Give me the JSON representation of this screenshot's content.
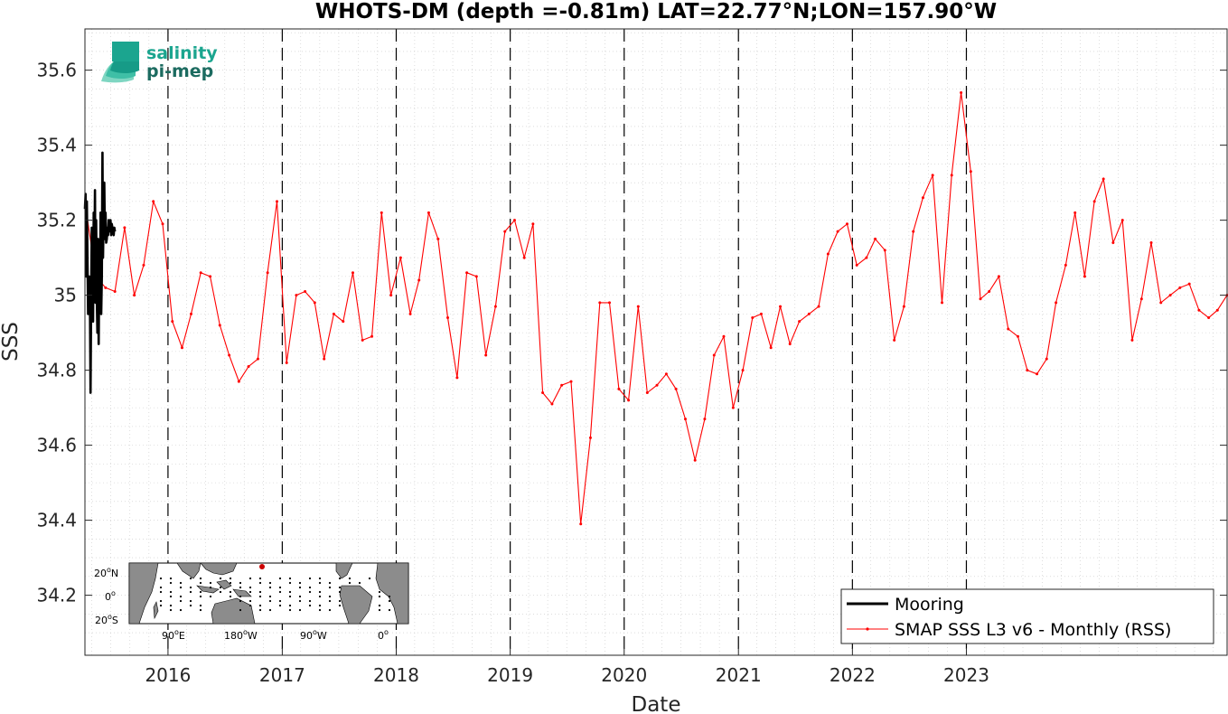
{
  "chart_data": {
    "type": "line",
    "title": "WHOTS-DM (depth =-0.81m) LAT=22.77°N;LON=157.90°W",
    "xlabel": "Date",
    "ylabel": "SSS",
    "xlim": [
      "2015-04-10",
      "2025-04-15"
    ],
    "ylim": [
      34.04,
      35.71
    ],
    "yticks": [
      34.2,
      34.4,
      34.6,
      34.8,
      35,
      35.2,
      35.4,
      35.6
    ],
    "ytick_labels": [
      "34.2",
      "34.4",
      "34.6",
      "34.8",
      "35",
      "35.2",
      "35.4",
      "35.6"
    ],
    "xtick_labels": [
      "2016",
      "2017",
      "2018",
      "2019",
      "2020",
      "2021",
      "2022",
      "2023"
    ],
    "year_lines": [
      "2016-01-01",
      "2017-01-01",
      "2018-01-01",
      "2019-01-01",
      "2020-01-01",
      "2021-01-01",
      "2022-01-01",
      "2023-01-01"
    ],
    "grid": true,
    "legend_position": "bottom-right",
    "series": [
      {
        "name": "Mooring",
        "color": "#000000",
        "x": [
          "2015-04-10",
          "2015-04-12",
          "2015-04-14",
          "2015-04-16",
          "2015-04-18",
          "2015-04-20",
          "2015-04-22",
          "2015-04-24",
          "2015-04-26",
          "2015-04-28",
          "2015-04-30",
          "2015-05-02",
          "2015-05-04",
          "2015-05-06",
          "2015-05-08",
          "2015-05-10",
          "2015-05-12",
          "2015-05-14",
          "2015-05-16",
          "2015-05-18",
          "2015-05-20",
          "2015-05-22",
          "2015-05-24",
          "2015-05-26",
          "2015-05-28",
          "2015-05-30",
          "2015-06-01",
          "2015-06-03",
          "2015-06-05",
          "2015-06-07",
          "2015-06-09",
          "2015-06-11",
          "2015-06-13",
          "2015-06-15",
          "2015-06-17",
          "2015-06-19",
          "2015-06-21",
          "2015-06-23",
          "2015-06-25",
          "2015-06-27",
          "2015-06-29",
          "2015-07-01",
          "2015-07-03",
          "2015-07-05",
          "2015-07-07",
          "2015-07-09",
          "2015-07-11",
          "2015-07-13",
          "2015-07-15"
        ],
        "y": [
          35.23,
          35.27,
          35.05,
          35.25,
          35.1,
          34.95,
          34.98,
          35.05,
          35.0,
          34.74,
          35.0,
          35.18,
          35.03,
          34.93,
          35.22,
          35.05,
          35.28,
          34.98,
          35.2,
          35.0,
          34.9,
          35.15,
          34.87,
          35.1,
          34.98,
          35.22,
          34.95,
          35.05,
          35.38,
          35.1,
          35.22,
          35.3,
          35.15,
          35.22,
          35.14,
          35.15,
          35.18,
          35.16,
          35.2,
          35.18,
          35.17,
          35.2,
          35.16,
          35.19,
          35.18,
          35.17,
          35.16,
          35.18,
          35.17
        ]
      },
      {
        "name": "SMAP SSS L3 v6 - Monthly (RSS)",
        "color": "#ff0000",
        "x": [
          "2015-04-15",
          "2015-05-15",
          "2015-06-15",
          "2015-07-15",
          "2015-08-15",
          "2015-09-15",
          "2015-10-15",
          "2015-11-15",
          "2015-12-15",
          "2016-01-15",
          "2016-02-15",
          "2016-03-15",
          "2016-04-15",
          "2016-05-15",
          "2016-06-15",
          "2016-07-15",
          "2016-08-15",
          "2016-09-15",
          "2016-10-15",
          "2016-11-15",
          "2016-12-15",
          "2017-01-15",
          "2017-02-15",
          "2017-03-15",
          "2017-04-15",
          "2017-05-15",
          "2017-06-15",
          "2017-07-15",
          "2017-08-15",
          "2017-09-15",
          "2017-10-15",
          "2017-11-15",
          "2017-12-15",
          "2018-01-15",
          "2018-02-15",
          "2018-03-15",
          "2018-04-15",
          "2018-05-15",
          "2018-06-15",
          "2018-07-15",
          "2018-08-15",
          "2018-09-15",
          "2018-10-15",
          "2018-11-15",
          "2018-12-15",
          "2019-01-15",
          "2019-02-15",
          "2019-03-15",
          "2019-04-15",
          "2019-05-15",
          "2019-06-15",
          "2019-07-15",
          "2019-08-15",
          "2019-09-15",
          "2019-10-15",
          "2019-11-15",
          "2019-12-15",
          "2020-01-15",
          "2020-02-15",
          "2020-03-15",
          "2020-04-15",
          "2020-05-15",
          "2020-06-15",
          "2020-07-15",
          "2020-08-15",
          "2020-09-15",
          "2020-10-15",
          "2020-11-15",
          "2020-12-15",
          "2021-01-15",
          "2021-02-15",
          "2021-03-15",
          "2021-04-15",
          "2021-05-15",
          "2021-06-15",
          "2021-07-15",
          "2021-08-15",
          "2021-09-15",
          "2021-10-15",
          "2021-11-15",
          "2021-12-15",
          "2022-01-15",
          "2022-02-15",
          "2022-03-15",
          "2022-04-15",
          "2022-05-15",
          "2022-06-15",
          "2022-07-15",
          "2022-08-15",
          "2022-09-15",
          "2022-10-15",
          "2022-11-15",
          "2022-12-15",
          "2023-01-15",
          "2023-02-15",
          "2023-03-15",
          "2023-04-15",
          "2023-05-15",
          "2023-06-15",
          "2023-07-15",
          "2023-08-15",
          "2023-09-15",
          "2023-10-15",
          "2023-11-15",
          "2023-12-15",
          "2024-01-15",
          "2024-02-15",
          "2024-03-15",
          "2024-04-15",
          "2024-05-15",
          "2024-06-15",
          "2024-07-15",
          "2024-08-15",
          "2024-09-15",
          "2024-10-15",
          "2024-11-15",
          "2024-12-15",
          "2025-01-15",
          "2025-02-15",
          "2025-03-15",
          "2025-04-15"
        ],
        "y": [
          35.22,
          35.05,
          35.02,
          35.01,
          35.18,
          35.0,
          35.08,
          35.25,
          35.19,
          34.93,
          34.86,
          34.95,
          35.06,
          35.05,
          34.92,
          34.84,
          34.77,
          34.81,
          34.83,
          35.06,
          35.25,
          34.82,
          35.0,
          35.01,
          34.98,
          34.83,
          34.95,
          34.93,
          35.06,
          34.88,
          34.89,
          35.22,
          35.0,
          35.1,
          34.95,
          35.04,
          35.22,
          35.15,
          34.94,
          34.78,
          35.06,
          35.05,
          34.84,
          34.97,
          35.17,
          35.2,
          35.1,
          35.19,
          34.74,
          34.71,
          34.76,
          34.77,
          34.39,
          34.62,
          34.98,
          34.98,
          34.75,
          34.72,
          34.97,
          34.74,
          34.76,
          34.79,
          34.75,
          34.67,
          34.56,
          34.67,
          34.84,
          34.89,
          34.7,
          34.8,
          34.94,
          34.95,
          34.86,
          34.97,
          34.87,
          34.93,
          34.95,
          34.97,
          35.11,
          35.17,
          35.19,
          35.08,
          35.1,
          35.15,
          35.12,
          34.88,
          34.97,
          35.17,
          35.26,
          35.32,
          34.98,
          35.32,
          35.54,
          35.33,
          34.99,
          35.01,
          35.05,
          34.91,
          34.89,
          34.8,
          34.79,
          34.83,
          34.98,
          35.08,
          35.22,
          35.05,
          35.25,
          35.31,
          35.14,
          35.2,
          34.88,
          34.99,
          35.14,
          34.98,
          35.0,
          35.02,
          35.03,
          34.96,
          34.94,
          34.96,
          35.0
        ]
      }
    ]
  },
  "logo": {
    "line1": "salinity",
    "line2": "pi-mep",
    "color1": "#1ba58f",
    "color2": "#1c6b60"
  },
  "inset_map": {
    "lat_labels": [
      "20",
      "0",
      "20"
    ],
    "lat_suffix": [
      "N",
      "",
      "S"
    ],
    "lon_labels": [
      "90",
      "180",
      "90",
      "0"
    ],
    "lon_suffix": [
      "E",
      "W",
      "W",
      ""
    ],
    "land_color": "#8c8c8c",
    "ocean_color": "#ffffff",
    "marker_color": "#cc0000"
  }
}
